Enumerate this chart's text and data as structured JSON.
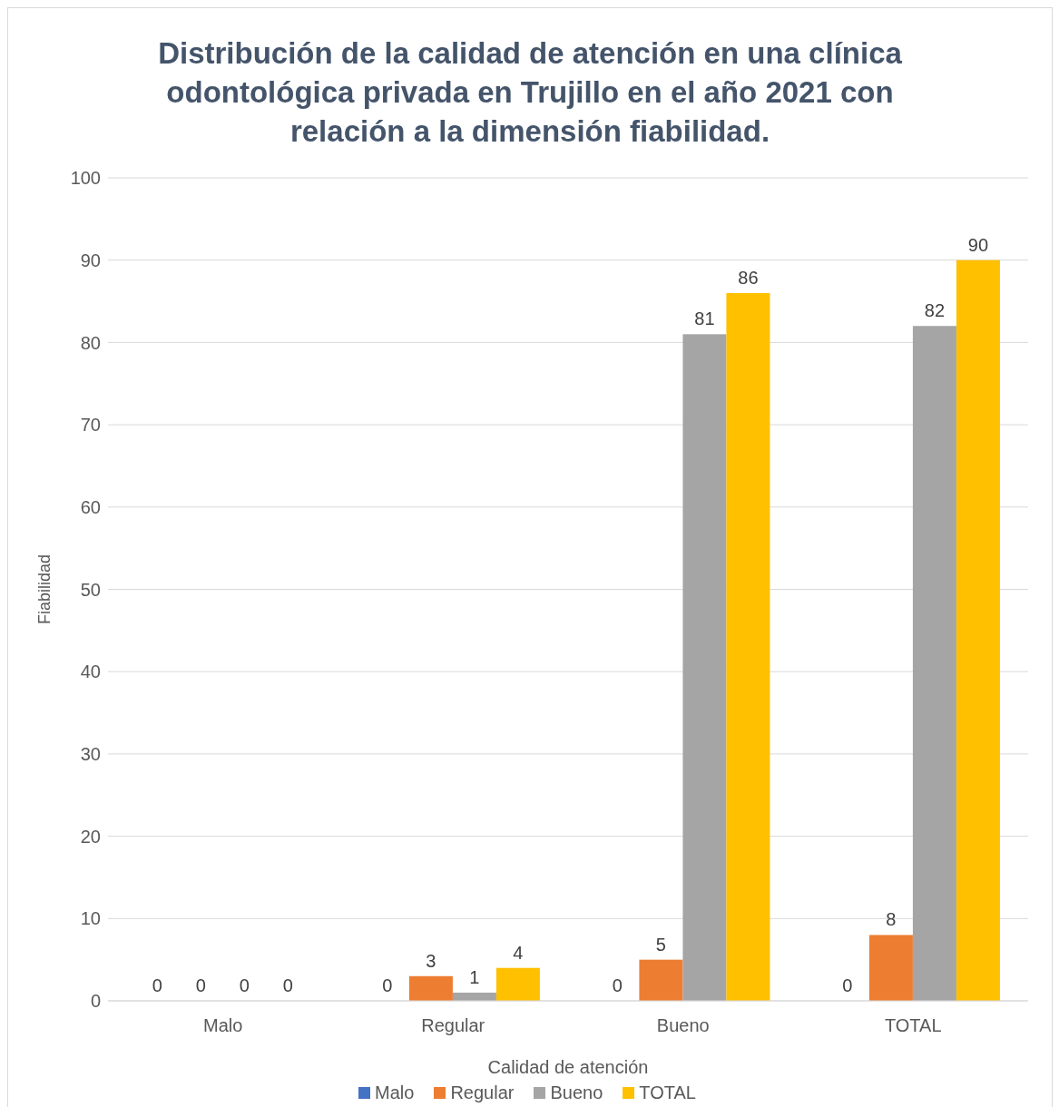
{
  "chart_data": {
    "type": "bar",
    "title": "Distribución de la calidad de atención en una clínica odontológica privada en Trujillo en el año 2021 con relación a la dimensión fiabilidad.",
    "xlabel": "Calidad de atención",
    "ylabel": "Fiabilidad",
    "categories": [
      "Malo",
      "Regular",
      "Bueno",
      "TOTAL"
    ],
    "series": [
      {
        "name": "Malo",
        "color": "#4472c4",
        "values": [
          0,
          0,
          0,
          0
        ]
      },
      {
        "name": "Regular",
        "color": "#ed7d31",
        "values": [
          0,
          3,
          5,
          8
        ]
      },
      {
        "name": "Bueno",
        "color": "#a5a5a5",
        "values": [
          0,
          1,
          81,
          82
        ]
      },
      {
        "name": "TOTAL",
        "color": "#ffc000",
        "values": [
          0,
          4,
          86,
          90
        ]
      }
    ],
    "ylim": [
      0,
      100
    ],
    "yticks": [
      0,
      10,
      20,
      30,
      40,
      50,
      60,
      70,
      80,
      90,
      100
    ],
    "grid": "y",
    "legend": "bottom",
    "data_labels": true
  }
}
